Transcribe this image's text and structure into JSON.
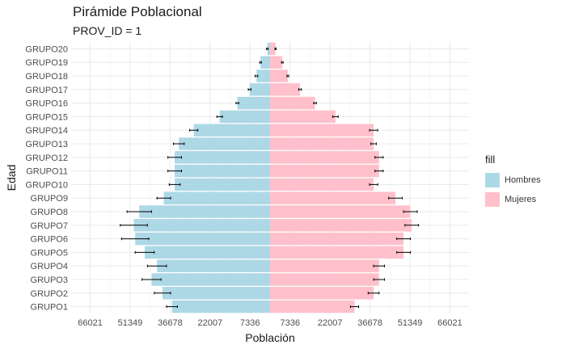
{
  "chart_data": {
    "type": "bar",
    "title": "Pirámide Poblacional",
    "subtitle": "PROV_ID = 1",
    "xlabel": "Población",
    "ylabel": "Edad",
    "categories": [
      "GRUPO1",
      "GRUPO2",
      "GRUPO3",
      "GRUPO4",
      "GRUPO5",
      "GRUPO6",
      "GRUPO7",
      "GRUPO8",
      "GRUPO9",
      "GRUPO10",
      "GRUPO11",
      "GRUPO12",
      "GRUPO13",
      "GRUPO14",
      "GRUPO15",
      "GRUPO16",
      "GRUPO17",
      "GRUPO18",
      "GRUPO19",
      "GRUPO20"
    ],
    "xlim": [
      -73000,
      73000
    ],
    "x_ticks": [
      -66021,
      -51349,
      -36678,
      -22007,
      -7336,
      7336,
      22007,
      36678,
      51349,
      66021
    ],
    "x_tick_labels": [
      "66021",
      "51349",
      "36678",
      "22007",
      "7336",
      "7336",
      "22007",
      "36678",
      "51349",
      "66021"
    ],
    "legend_title": "fill",
    "legend_position": "right",
    "grid": true,
    "series": [
      {
        "name": "Hombres",
        "color": "#add8e6",
        "values": [
          -36000,
          -39500,
          -43500,
          -41500,
          -46000,
          -49500,
          -50000,
          -48000,
          -39000,
          -35000,
          -35000,
          -35000,
          -33500,
          -28000,
          -18500,
          -12000,
          -7500,
          -5000,
          -3500,
          -1000
        ],
        "error": [
          2000,
          3000,
          3500,
          3500,
          3500,
          5000,
          5000,
          4500,
          2500,
          2000,
          2500,
          2500,
          2000,
          1500,
          1000,
          500,
          500,
          500,
          300,
          300
        ]
      },
      {
        "name": "Mujeres",
        "color": "#ffc0cb",
        "values": [
          31000,
          38000,
          40000,
          40000,
          49000,
          49000,
          52000,
          51500,
          46000,
          38000,
          40000,
          40000,
          38000,
          38000,
          24000,
          16500,
          11000,
          6500,
          4500,
          2000
        ],
        "error": [
          1500,
          2000,
          2000,
          2000,
          2500,
          2500,
          2500,
          2500,
          2500,
          1500,
          1500,
          1500,
          1000,
          1500,
          1000,
          500,
          500,
          300,
          300,
          200
        ]
      }
    ]
  }
}
